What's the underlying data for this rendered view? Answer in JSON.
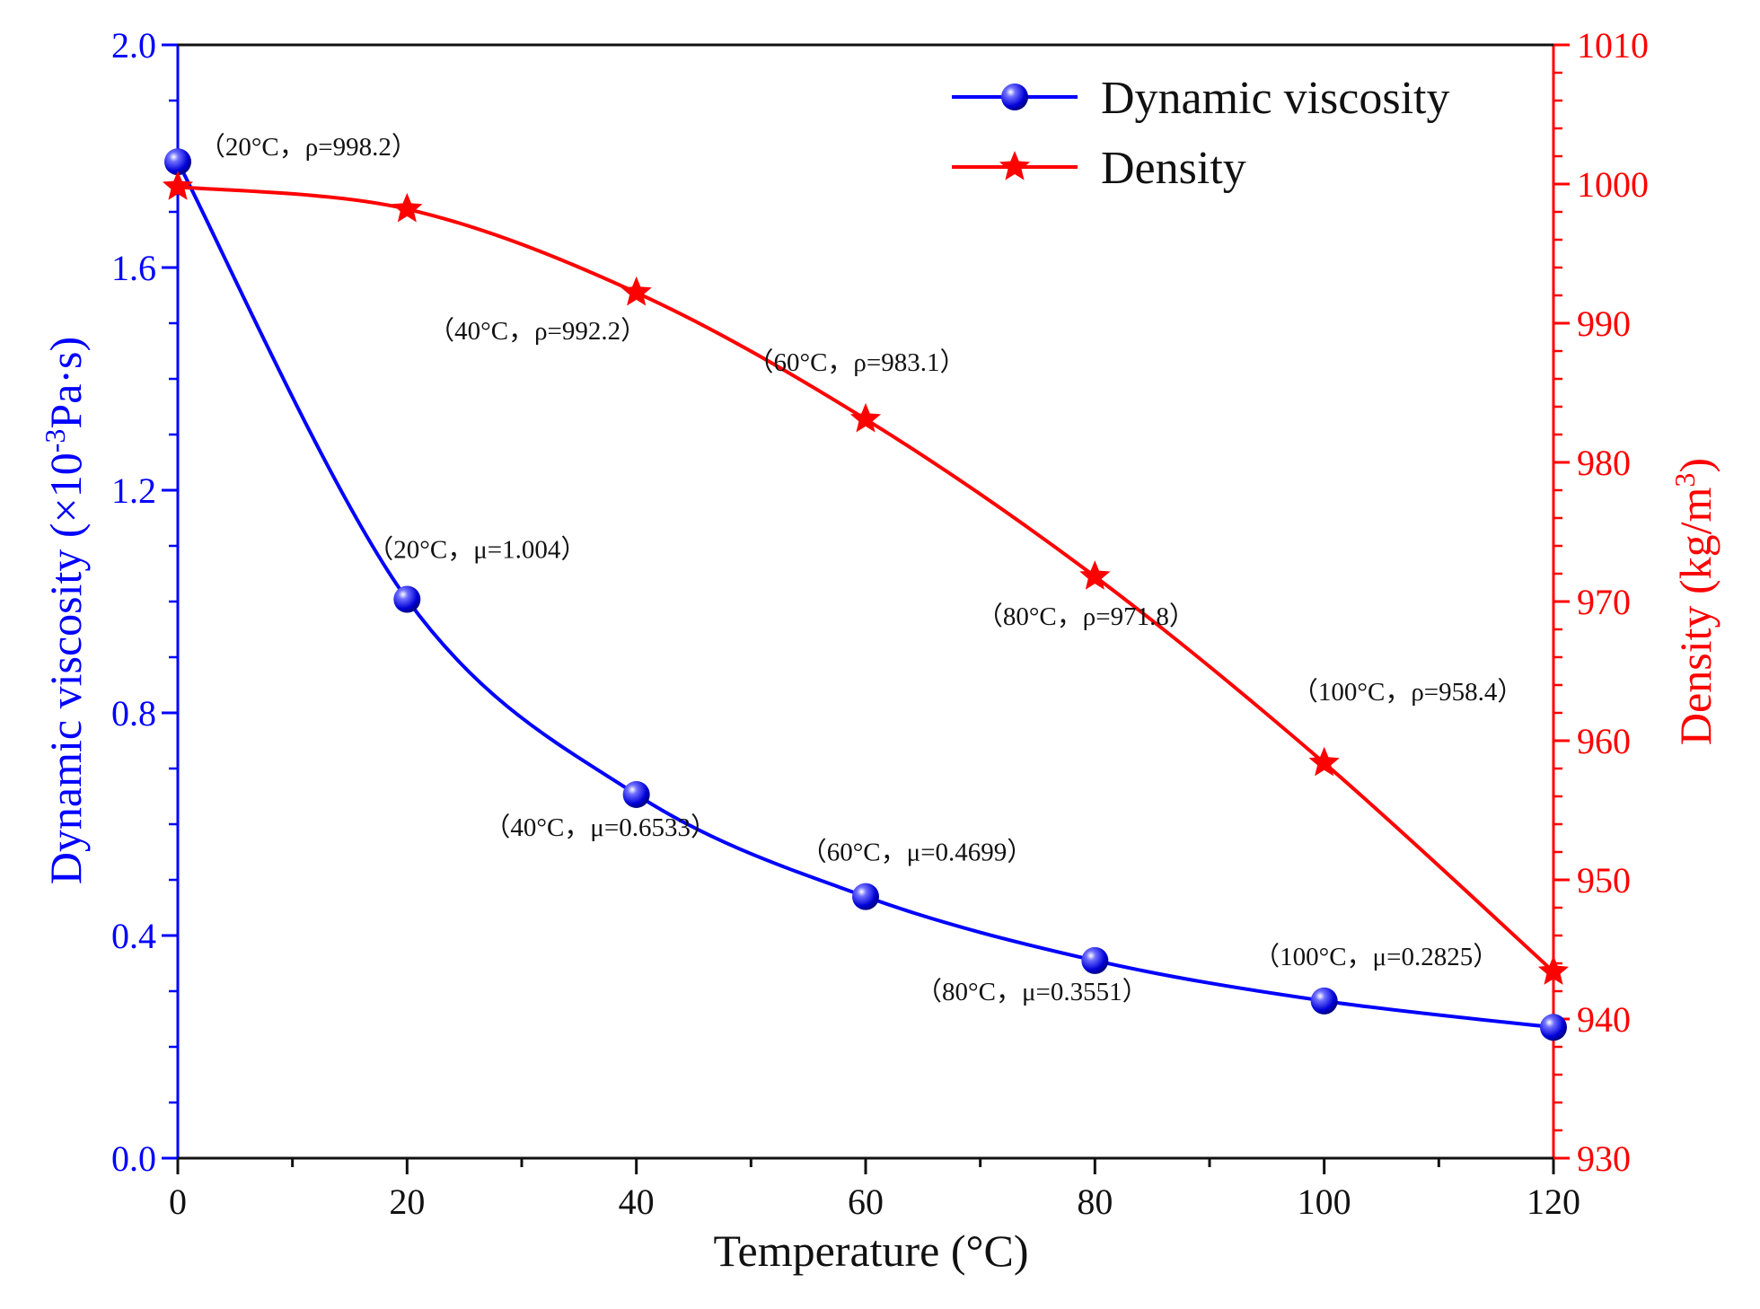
{
  "chart_data": {
    "type": "line",
    "xlabel": "Temperature (°C)",
    "y_left_label": "Dynamic viscosity (×10",
    "y_left_label_sup": "-3",
    "y_left_label_tail": "Pa·s)",
    "y_right_label": "Density (kg/m",
    "y_right_label_sup": "3",
    "y_right_label_tail": ")",
    "xlim": [
      0,
      120
    ],
    "y_left_lim": [
      0,
      2.0
    ],
    "y_right_lim": [
      930,
      1010
    ],
    "x_ticks": [
      "0",
      "20",
      "40",
      "60",
      "80",
      "100",
      "120"
    ],
    "x_tick_values": [
      0,
      20,
      40,
      60,
      80,
      100,
      120
    ],
    "y_left_ticks": [
      "0.0",
      "0.4",
      "0.8",
      "1.2",
      "1.6",
      "2.0"
    ],
    "y_left_tick_values": [
      0,
      0.4,
      0.8,
      1.2,
      1.6,
      2.0
    ],
    "y_right_ticks": [
      "930",
      "940",
      "950",
      "960",
      "970",
      "980",
      "990",
      "1000",
      "1010"
    ],
    "y_right_tick_values": [
      930,
      940,
      950,
      960,
      970,
      980,
      990,
      1000,
      1010
    ],
    "legend_position": "top-right",
    "series": [
      {
        "name": "Dynamic viscosity",
        "axis": "left",
        "color": "#0000ff",
        "marker": "sphere",
        "x": [
          0,
          20,
          40,
          60,
          80,
          100,
          120
        ],
        "values": [
          1.79,
          1.004,
          0.6533,
          0.4699,
          0.3551,
          0.2825,
          0.235
        ]
      },
      {
        "name": "Density",
        "axis": "right",
        "color": "#ff0000",
        "marker": "star",
        "x": [
          0,
          20,
          40,
          60,
          80,
          100,
          120
        ],
        "values": [
          999.8,
          998.2,
          992.2,
          983.1,
          971.8,
          958.4,
          943.4
        ]
      }
    ],
    "annotations": [
      {
        "text": "（20°C，ρ=998.2）",
        "series": "Density",
        "x": 20
      },
      {
        "text": "（40°C，ρ=992.2）",
        "series": "Density",
        "x": 40
      },
      {
        "text": "（60°C，ρ=983.1）",
        "series": "Density",
        "x": 60
      },
      {
        "text": "（80°C，ρ=971.8）",
        "series": "Density",
        "x": 80
      },
      {
        "text": "（100°C，ρ=958.4）",
        "series": "Density",
        "x": 100
      },
      {
        "text": "（20°C，μ=1.004）",
        "series": "Dynamic viscosity",
        "x": 20
      },
      {
        "text": "（40°C，μ=0.6533）",
        "series": "Dynamic viscosity",
        "x": 40
      },
      {
        "text": "（60°C，μ=0.4699）",
        "series": "Dynamic viscosity",
        "x": 60
      },
      {
        "text": "（80°C，μ=0.3551）",
        "series": "Dynamic viscosity",
        "x": 80
      },
      {
        "text": "（100°C，μ=0.2825）",
        "series": "Dynamic viscosity",
        "x": 100
      }
    ]
  }
}
